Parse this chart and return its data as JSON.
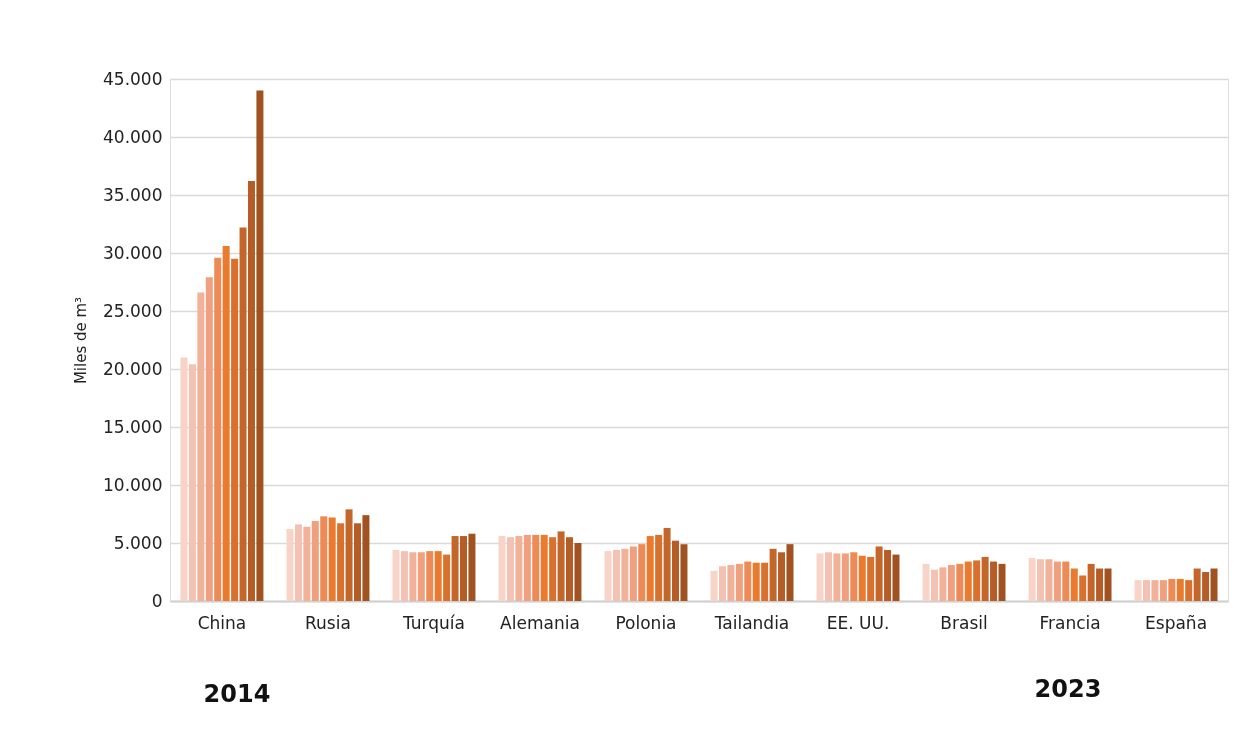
{
  "chart_data": {
    "type": "bar",
    "ylabel": "Miles de m³",
    "categories": [
      "China",
      "Rusia",
      "Turquía",
      "Alemania",
      "Polonia",
      "Tailandia",
      "EE. UU.",
      "Brasil",
      "Francia",
      "España"
    ],
    "series": [
      {
        "color": "#f7d4c7",
        "values": [
          21000,
          6200,
          4400,
          5600,
          4300,
          2600,
          4100,
          3200,
          3700,
          1800
        ]
      },
      {
        "color": "#f4c2b2",
        "values": [
          20400,
          6600,
          4300,
          5500,
          4400,
          3000,
          4200,
          2700,
          3600,
          1800
        ]
      },
      {
        "color": "#f2b199",
        "values": [
          26600,
          6400,
          4200,
          5600,
          4500,
          3100,
          4100,
          2900,
          3600,
          1800
        ]
      },
      {
        "color": "#f0a07e",
        "values": [
          27900,
          6900,
          4200,
          5700,
          4700,
          3200,
          4100,
          3100,
          3400,
          1800
        ]
      },
      {
        "color": "#ed8a55",
        "values": [
          29600,
          7300,
          4300,
          5700,
          4900,
          3400,
          4200,
          3200,
          3400,
          1900
        ]
      },
      {
        "color": "#e97a2e",
        "values": [
          30600,
          7200,
          4300,
          5700,
          5600,
          3300,
          3900,
          3400,
          2800,
          1900
        ]
      },
      {
        "color": "#d8702e",
        "values": [
          29500,
          6700,
          4000,
          5500,
          5700,
          3300,
          3800,
          3500,
          2200,
          1800
        ]
      },
      {
        "color": "#c4652a",
        "values": [
          32200,
          7900,
          5600,
          6000,
          6300,
          4500,
          4700,
          3800,
          3200,
          2800
        ]
      },
      {
        "color": "#b65c26",
        "values": [
          36200,
          6700,
          5600,
          5500,
          5200,
          4200,
          4400,
          3400,
          2800,
          2500
        ]
      },
      {
        "color": "#a05220",
        "values": [
          44000,
          7400,
          5800,
          5000,
          4900,
          4900,
          4000,
          3200,
          2800,
          2800
        ]
      }
    ],
    "ylim": [
      0,
      45000
    ],
    "yticks": [
      0,
      {
        "value": 5000,
        "label": "5.000"
      },
      {
        "value": 10000,
        "label": "10.000"
      },
      {
        "value": 15000,
        "label": "15.000"
      },
      {
        "value": 20000,
        "label": "20.000"
      },
      {
        "value": 25000,
        "label": "25.000"
      },
      {
        "value": 30000,
        "label": "30.000"
      },
      {
        "value": 35000,
        "label": "35.000"
      },
      {
        "value": 40000,
        "label": "40.000"
      },
      {
        "value": 45000,
        "label": "45.000"
      }
    ],
    "grid": "y",
    "legend": false,
    "annotations": [
      "2014",
      "2023"
    ]
  }
}
